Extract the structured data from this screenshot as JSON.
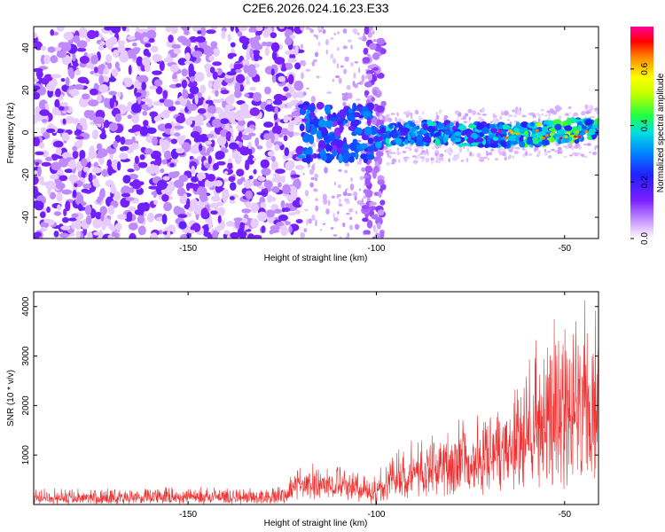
{
  "title": "C2E6.2026.024.16.23.E33",
  "chart_data": [
    {
      "type": "heatmap",
      "xlabel": "Height of straight line (km)",
      "ylabel": "Frequency (Hz)",
      "xlim": [
        -191,
        -41
      ],
      "ylim": [
        -50,
        50
      ],
      "xticks": [
        -150,
        -100,
        -50
      ],
      "xtick_labels": [
        "-150",
        "-100",
        "-50"
      ],
      "yticks": [
        -40,
        -20,
        0,
        20,
        40
      ],
      "ytick_labels": [
        "-40",
        "-20",
        "0",
        "20",
        "40"
      ],
      "colorbar": {
        "label": "Normalized spectral amplitude",
        "range": [
          0,
          0.75
        ],
        "ticks": [
          0,
          0.2,
          0.4,
          0.6
        ],
        "tick_labels": [
          "0.0",
          "0.2",
          "0.4",
          "0.6"
        ]
      },
      "regions": [
        {
          "x": [
            -191,
            -120
          ],
          "description": "broadband noise",
          "freq_center": 0,
          "freq_spread": 50,
          "amplitude": 0.12
        },
        {
          "x": [
            -120,
            -100
          ],
          "description": "transition",
          "freq_center": 0,
          "freq_spread": 12,
          "amplitude": 0.25
        },
        {
          "x": [
            -100,
            -41
          ],
          "description": "narrow signal band",
          "freq_center": -2,
          "freq_spread": 5,
          "amplitude": 0.45
        }
      ]
    },
    {
      "type": "line",
      "xlabel": "Height of straight line (km)",
      "ylabel": "SNR (10 * v/v)",
      "xlim": [
        -191,
        -41
      ],
      "ylim": [
        0,
        4300
      ],
      "xticks": [
        -150,
        -100,
        -50
      ],
      "xtick_labels": [
        "-150",
        "-100",
        "-50"
      ],
      "yticks": [
        1000,
        2000,
        3000,
        4000
      ],
      "ytick_labels": [
        "1000",
        "2000",
        "3000",
        "4000"
      ],
      "color": "#f03030",
      "envelope": [
        {
          "x": -191,
          "low": 0,
          "high": 350
        },
        {
          "x": -150,
          "low": 0,
          "high": 380
        },
        {
          "x": -125,
          "low": 0,
          "high": 400
        },
        {
          "x": -120,
          "low": 100,
          "high": 900
        },
        {
          "x": -110,
          "low": 100,
          "high": 850
        },
        {
          "x": -100,
          "low": 0,
          "high": 700
        },
        {
          "x": -95,
          "low": 100,
          "high": 1300
        },
        {
          "x": -80,
          "low": 150,
          "high": 1700
        },
        {
          "x": -70,
          "low": 200,
          "high": 2000
        },
        {
          "x": -60,
          "low": 300,
          "high": 3200
        },
        {
          "x": -50,
          "low": 300,
          "high": 4200
        },
        {
          "x": -41,
          "low": 300,
          "high": 4200
        }
      ]
    }
  ]
}
